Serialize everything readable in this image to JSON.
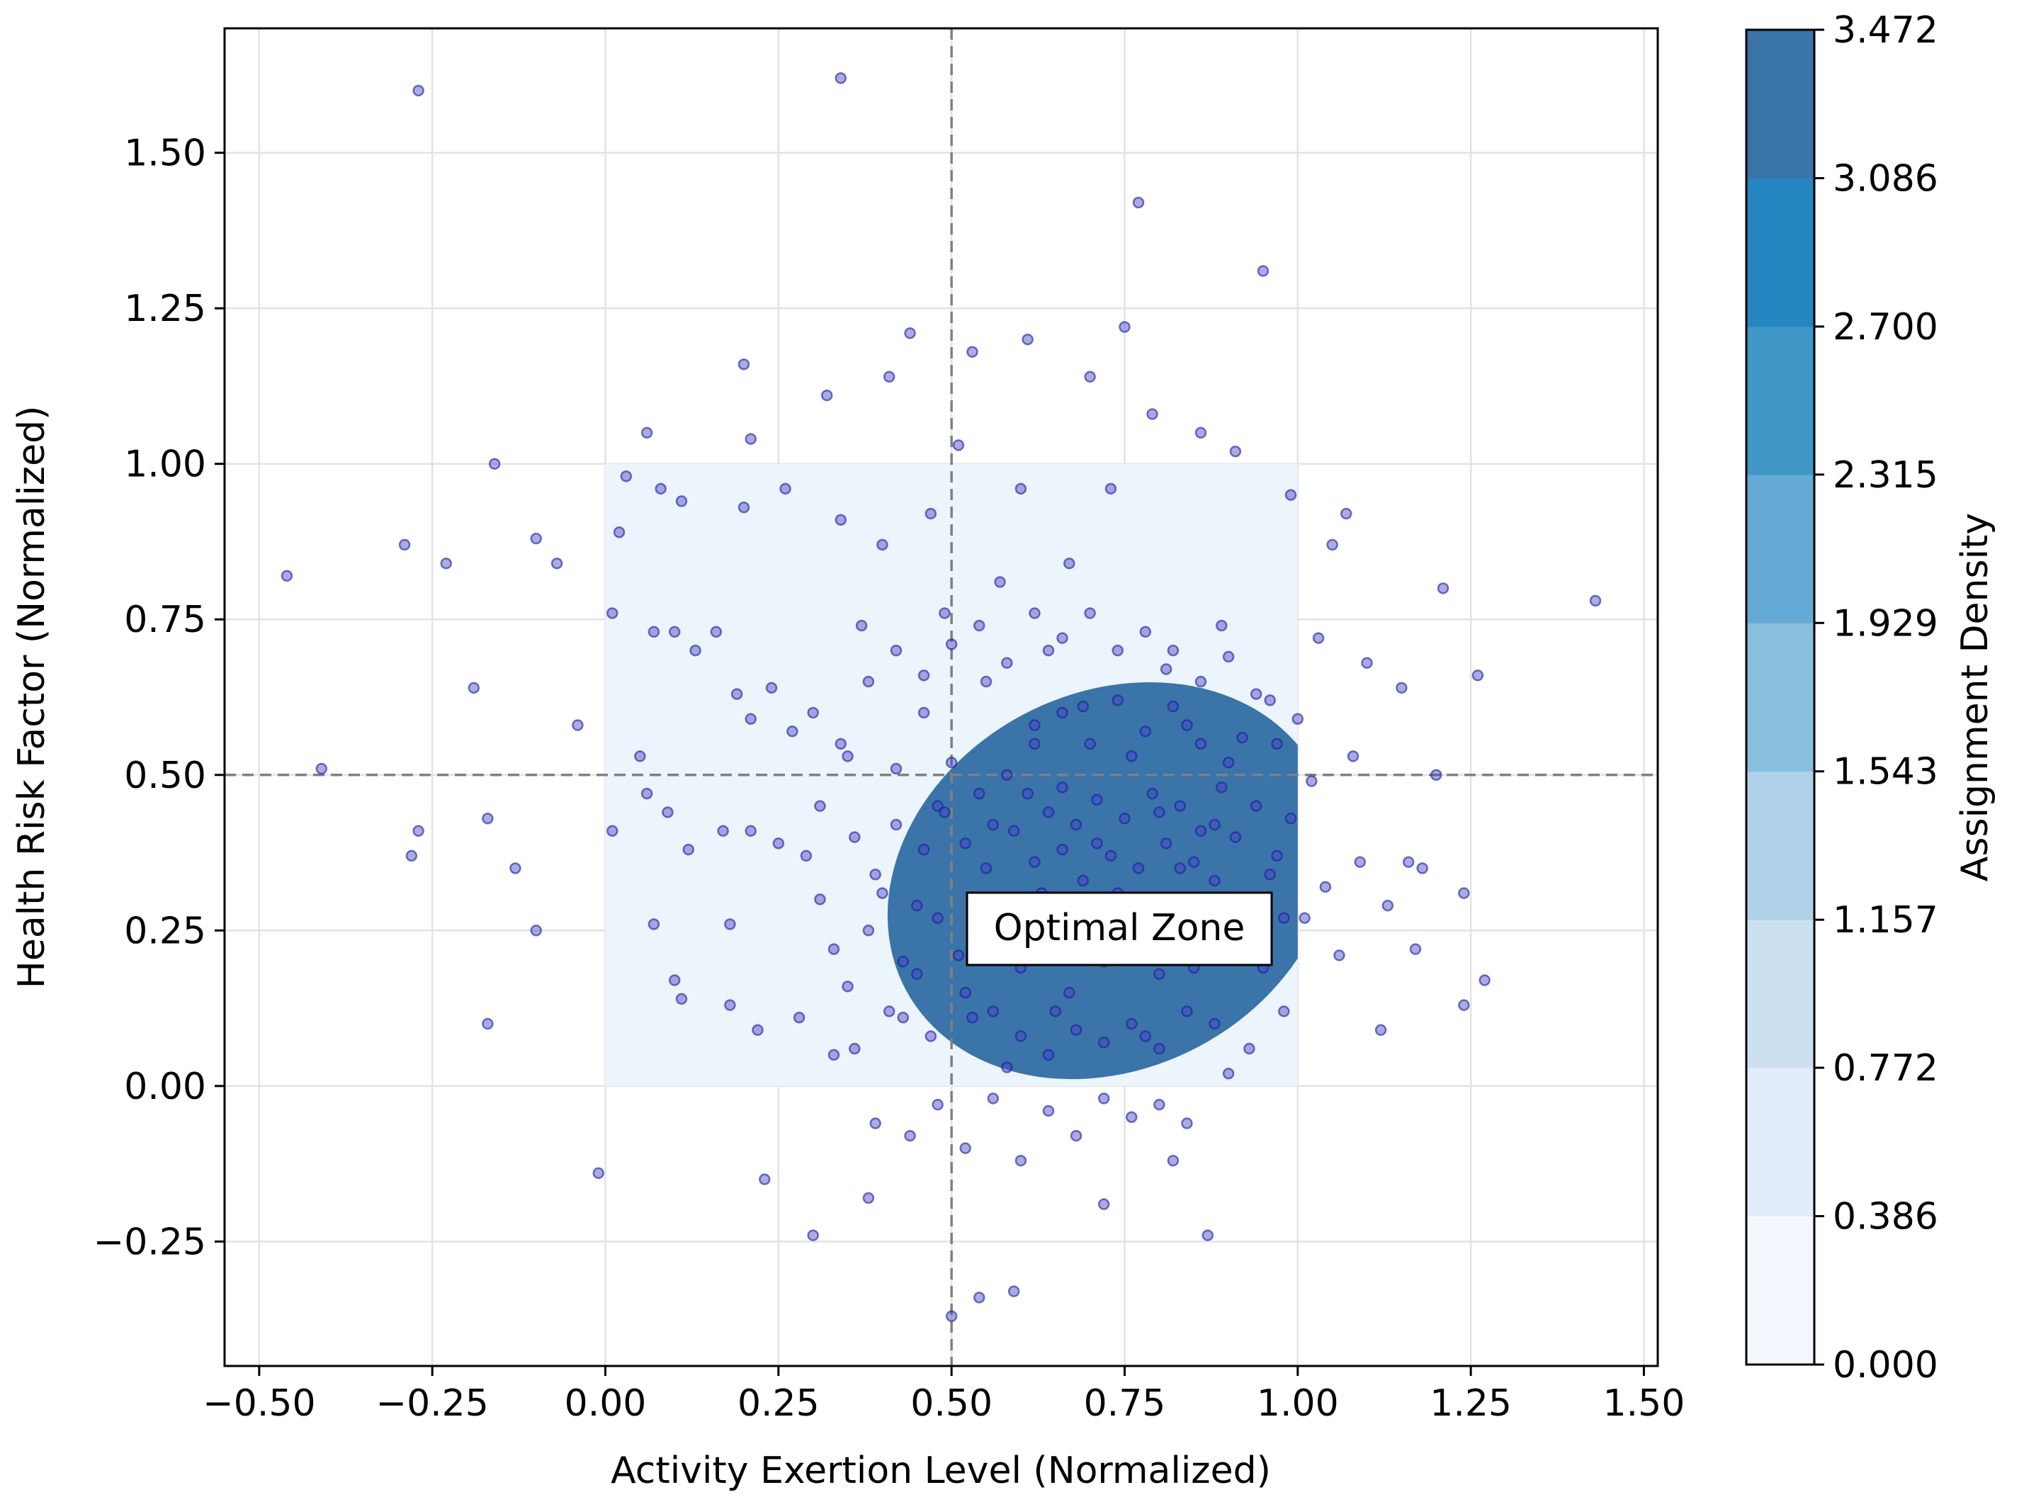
{
  "chart_data": {
    "type": "scatter",
    "title": "",
    "xlabel": "Activity Exertion Level (Normalized)",
    "ylabel": "Health Risk Factor (Normalized)",
    "xlim": [
      -0.55,
      1.52
    ],
    "ylim": [
      -0.45,
      1.7
    ],
    "x_ticks": [
      -0.5,
      -0.25,
      0.0,
      0.25,
      0.5,
      0.75,
      1.0,
      1.25,
      1.5
    ],
    "x_tick_labels": [
      "−0.50",
      "−0.25",
      "0.00",
      "0.25",
      "0.50",
      "0.75",
      "1.00",
      "1.25",
      "1.50"
    ],
    "y_ticks": [
      -0.25,
      0.0,
      0.25,
      0.5,
      0.75,
      1.0,
      1.25,
      1.5
    ],
    "y_tick_labels": [
      "−0.25",
      "0.00",
      "0.25",
      "0.50",
      "0.75",
      "1.00",
      "1.25",
      "1.50"
    ],
    "grid": true,
    "reference_lines": {
      "x": 0.5,
      "y": 0.5,
      "style": "dashed",
      "color": "#808080"
    },
    "optimal_zone": {
      "x0": 0.0,
      "x1": 1.0,
      "y0": 0.0,
      "y1": 1.0,
      "fill": "#ecf4fc"
    },
    "density_peak": {
      "x": 0.73,
      "y": 0.33,
      "sx": 0.16,
      "sy": 0.18,
      "rho": 0.35
    },
    "annotation": {
      "text": "Optimal Zone",
      "x": 0.75,
      "y": 0.25
    },
    "colorbar": {
      "label": "Assignment Density",
      "levels": [
        0.0,
        0.386,
        0.772,
        1.157,
        1.543,
        1.929,
        2.315,
        2.7,
        3.086,
        3.472
      ],
      "level_labels": [
        "0.000",
        "0.386",
        "0.772",
        "1.157",
        "1.543",
        "1.929",
        "2.315",
        "2.700",
        "3.086",
        "3.472"
      ],
      "colors": [
        "#f2f8fd",
        "#e1edf8",
        "#cde0f1",
        "#b0d2e8",
        "#89bfde",
        "#65aad4",
        "#3f97c7",
        "#2585c0",
        "#3a74a8"
      ]
    },
    "point_color": "#4545c0",
    "points": [
      [
        -0.46,
        0.82
      ],
      [
        -0.41,
        0.51
      ],
      [
        -0.29,
        0.87
      ],
      [
        -0.28,
        0.37
      ],
      [
        -0.27,
        0.41
      ],
      [
        -0.27,
        1.6
      ],
      [
        -0.23,
        0.84
      ],
      [
        -0.19,
        0.64
      ],
      [
        -0.17,
        0.43
      ],
      [
        -0.17,
        0.1
      ],
      [
        -0.16,
        1.0
      ],
      [
        -0.13,
        0.35
      ],
      [
        -0.1,
        0.88
      ],
      [
        -0.1,
        0.25
      ],
      [
        -0.07,
        0.84
      ],
      [
        -0.04,
        0.58
      ],
      [
        -0.01,
        -0.14
      ],
      [
        0.01,
        0.41
      ],
      [
        0.01,
        0.76
      ],
      [
        0.02,
        0.89
      ],
      [
        0.03,
        0.98
      ],
      [
        0.05,
        0.53
      ],
      [
        0.06,
        0.47
      ],
      [
        0.06,
        1.05
      ],
      [
        0.07,
        0.73
      ],
      [
        0.07,
        0.26
      ],
      [
        0.08,
        0.96
      ],
      [
        0.09,
        0.44
      ],
      [
        0.1,
        0.73
      ],
      [
        0.1,
        0.17
      ],
      [
        0.11,
        0.14
      ],
      [
        0.11,
        0.94
      ],
      [
        0.12,
        0.38
      ],
      [
        0.13,
        0.7
      ],
      [
        0.16,
        0.73
      ],
      [
        0.17,
        0.41
      ],
      [
        0.18,
        0.26
      ],
      [
        0.18,
        0.13
      ],
      [
        0.19,
        0.63
      ],
      [
        0.2,
        1.16
      ],
      [
        0.2,
        0.93
      ],
      [
        0.21,
        0.59
      ],
      [
        0.21,
        0.41
      ],
      [
        0.21,
        1.04
      ],
      [
        0.22,
        0.09
      ],
      [
        0.23,
        -0.15
      ],
      [
        0.24,
        0.64
      ],
      [
        0.25,
        0.39
      ],
      [
        0.26,
        0.96
      ],
      [
        0.27,
        0.57
      ],
      [
        0.28,
        0.11
      ],
      [
        0.29,
        0.37
      ],
      [
        0.3,
        -0.24
      ],
      [
        0.31,
        0.45
      ],
      [
        0.32,
        1.11
      ],
      [
        0.33,
        0.22
      ],
      [
        0.34,
        0.91
      ],
      [
        0.34,
        1.62
      ],
      [
        0.35,
        0.53
      ],
      [
        0.36,
        0.06
      ],
      [
        0.37,
        0.74
      ],
      [
        0.38,
        -0.18
      ],
      [
        0.39,
        0.34
      ],
      [
        0.4,
        0.87
      ],
      [
        0.41,
        1.14
      ],
      [
        0.42,
        0.51
      ],
      [
        0.43,
        0.11
      ],
      [
        0.44,
        1.21
      ],
      [
        0.45,
        0.29
      ],
      [
        0.46,
        0.6
      ],
      [
        0.47,
        0.92
      ],
      [
        0.48,
        0.45
      ],
      [
        0.49,
        0.76
      ],
      [
        0.5,
        0.52
      ],
      [
        0.5,
        -0.37
      ],
      [
        0.51,
        1.03
      ],
      [
        0.52,
        0.15
      ],
      [
        0.53,
        1.18
      ],
      [
        0.54,
        -0.34
      ],
      [
        0.55,
        0.65
      ],
      [
        0.56,
        0.42
      ],
      [
        0.57,
        0.81
      ],
      [
        0.58,
        0.03
      ],
      [
        0.59,
        -0.33
      ],
      [
        0.6,
        0.96
      ],
      [
        0.61,
        1.2
      ],
      [
        0.62,
        0.55
      ],
      [
        0.63,
        0.31
      ],
      [
        0.64,
        0.7
      ],
      [
        0.65,
        0.12
      ],
      [
        0.66,
        0.48
      ],
      [
        0.67,
        0.84
      ],
      [
        0.68,
        0.23
      ],
      [
        0.69,
        0.61
      ],
      [
        0.7,
        1.14
      ],
      [
        0.71,
        0.39
      ],
      [
        0.72,
        -0.19
      ],
      [
        0.73,
        0.96
      ],
      [
        0.74,
        0.27
      ],
      [
        0.75,
        1.22
      ],
      [
        0.76,
        0.53
      ],
      [
        0.77,
        1.42
      ],
      [
        0.78,
        0.08
      ],
      [
        0.79,
        1.08
      ],
      [
        0.8,
        0.44
      ],
      [
        0.81,
        0.67
      ],
      [
        0.82,
        -0.12
      ],
      [
        0.83,
        0.35
      ],
      [
        0.84,
        0.58
      ],
      [
        0.85,
        0.19
      ],
      [
        0.86,
        1.05
      ],
      [
        0.87,
        -0.24
      ],
      [
        0.88,
        0.42
      ],
      [
        0.89,
        0.74
      ],
      [
        0.9,
        0.02
      ],
      [
        0.91,
        1.02
      ],
      [
        0.92,
        0.56
      ],
      [
        0.93,
        0.28
      ],
      [
        0.95,
        1.31
      ],
      [
        0.96,
        0.62
      ],
      [
        0.97,
        0.37
      ],
      [
        0.98,
        0.12
      ],
      [
        0.99,
        0.95
      ],
      [
        1.0,
        0.59
      ],
      [
        1.01,
        0.27
      ],
      [
        1.02,
        0.49
      ],
      [
        1.03,
        0.72
      ],
      [
        1.04,
        0.32
      ],
      [
        1.05,
        0.87
      ],
      [
        1.06,
        0.21
      ],
      [
        1.07,
        0.92
      ],
      [
        1.08,
        0.53
      ],
      [
        1.09,
        0.36
      ],
      [
        1.1,
        0.68
      ],
      [
        1.12,
        0.09
      ],
      [
        1.13,
        0.29
      ],
      [
        1.15,
        0.64
      ],
      [
        1.16,
        0.36
      ],
      [
        1.17,
        0.22
      ],
      [
        1.18,
        0.35
      ],
      [
        1.2,
        0.5
      ],
      [
        1.21,
        0.8
      ],
      [
        1.24,
        0.13
      ],
      [
        1.24,
        0.31
      ],
      [
        1.26,
        0.66
      ],
      [
        1.27,
        0.17
      ],
      [
        1.43,
        0.78
      ],
      [
        0.55,
        0.35
      ],
      [
        0.57,
        0.28
      ],
      [
        0.59,
        0.41
      ],
      [
        0.6,
        0.19
      ],
      [
        0.61,
        0.47
      ],
      [
        0.62,
        0.36
      ],
      [
        0.63,
        0.22
      ],
      [
        0.64,
        0.44
      ],
      [
        0.65,
        0.3
      ],
      [
        0.66,
        0.38
      ],
      [
        0.67,
        0.15
      ],
      [
        0.68,
        0.42
      ],
      [
        0.69,
        0.33
      ],
      [
        0.7,
        0.26
      ],
      [
        0.71,
        0.46
      ],
      [
        0.72,
        0.2
      ],
      [
        0.73,
        0.37
      ],
      [
        0.74,
        0.31
      ],
      [
        0.75,
        0.43
      ],
      [
        0.76,
        0.24
      ],
      [
        0.77,
        0.35
      ],
      [
        0.78,
        0.29
      ],
      [
        0.79,
        0.47
      ],
      [
        0.8,
        0.18
      ],
      [
        0.81,
        0.39
      ],
      [
        0.82,
        0.3
      ],
      [
        0.83,
        0.45
      ],
      [
        0.84,
        0.23
      ],
      [
        0.85,
        0.36
      ],
      [
        0.86,
        0.41
      ],
      [
        0.87,
        0.27
      ],
      [
        0.88,
        0.33
      ],
      [
        0.89,
        0.48
      ],
      [
        0.9,
        0.21
      ],
      [
        0.91,
        0.4
      ],
      [
        0.92,
        0.3
      ],
      [
        0.56,
        0.12
      ],
      [
        0.58,
        0.5
      ],
      [
        0.6,
        0.08
      ],
      [
        0.62,
        0.58
      ],
      [
        0.64,
        0.05
      ],
      [
        0.66,
        0.6
      ],
      [
        0.68,
        0.09
      ],
      [
        0.7,
        0.55
      ],
      [
        0.72,
        0.07
      ],
      [
        0.74,
        0.62
      ],
      [
        0.76,
        0.1
      ],
      [
        0.78,
        0.57
      ],
      [
        0.8,
        0.06
      ],
      [
        0.82,
        0.61
      ],
      [
        0.84,
        0.12
      ],
      [
        0.86,
        0.55
      ],
      [
        0.88,
        0.1
      ],
      [
        0.9,
        0.52
      ],
      [
        0.45,
        0.18
      ],
      [
        0.46,
        0.38
      ],
      [
        0.47,
        0.08
      ],
      [
        0.48,
        0.27
      ],
      [
        0.49,
        0.44
      ],
      [
        0.51,
        0.21
      ],
      [
        0.52,
        0.39
      ],
      [
        0.53,
        0.11
      ],
      [
        0.54,
        0.47
      ],
      [
        0.4,
        0.31
      ],
      [
        0.41,
        0.12
      ],
      [
        0.42,
        0.42
      ],
      [
        0.43,
        0.2
      ],
      [
        0.38,
        0.25
      ],
      [
        0.36,
        0.4
      ],
      [
        0.35,
        0.16
      ],
      [
        0.33,
        0.05
      ],
      [
        0.31,
        0.3
      ],
      [
        0.39,
        -0.06
      ],
      [
        0.44,
        -0.08
      ],
      [
        0.48,
        -0.03
      ],
      [
        0.52,
        -0.1
      ],
      [
        0.56,
        -0.02
      ],
      [
        0.6,
        -0.12
      ],
      [
        0.64,
        -0.04
      ],
      [
        0.68,
        -0.08
      ],
      [
        0.72,
        -0.02
      ],
      [
        0.76,
        -0.05
      ],
      [
        0.8,
        -0.03
      ],
      [
        0.84,
        -0.06
      ],
      [
        0.3,
        0.6
      ],
      [
        0.34,
        0.55
      ],
      [
        0.38,
        0.65
      ],
      [
        0.42,
        0.7
      ],
      [
        0.46,
        0.66
      ],
      [
        0.5,
        0.71
      ],
      [
        0.54,
        0.74
      ],
      [
        0.58,
        0.68
      ],
      [
        0.62,
        0.76
      ],
      [
        0.66,
        0.72
      ],
      [
        0.7,
        0.76
      ],
      [
        0.74,
        0.7
      ],
      [
        0.78,
        0.73
      ],
      [
        0.82,
        0.7
      ],
      [
        0.86,
        0.65
      ],
      [
        0.9,
        0.69
      ],
      [
        0.94,
        0.63
      ],
      [
        0.97,
        0.55
      ],
      [
        0.94,
        0.45
      ],
      [
        0.95,
        0.19
      ],
      [
        0.93,
        0.06
      ],
      [
        0.96,
        0.34
      ],
      [
        0.99,
        0.43
      ],
      [
        0.98,
        0.27
      ]
    ]
  }
}
